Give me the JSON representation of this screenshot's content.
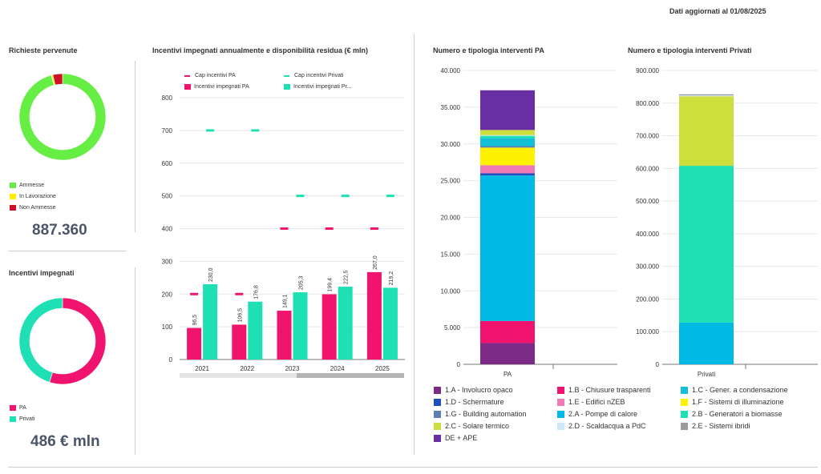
{
  "header": {
    "updated": "Dati aggiornati al 01/08/2025"
  },
  "requests": {
    "title": "Richieste pervenute",
    "total": "887.360",
    "legend": [
      {
        "label": "Ammesse",
        "color": "#66ee44"
      },
      {
        "label": "In Lavorazione",
        "color": "#ffee00"
      },
      {
        "label": "Non Ammesse",
        "color": "#cc1122"
      }
    ]
  },
  "incentives": {
    "title": "Incentivi impegnati",
    "total": "486 € mln",
    "legend": [
      {
        "label": "PA",
        "color": "#f0146e"
      },
      {
        "label": "Privati",
        "color": "#1ee0b4"
      }
    ]
  },
  "chart_data": [
    {
      "type": "pie",
      "variant": "donut",
      "categories": [
        "Ammesse",
        "In Lavorazione",
        "Non Ammesse"
      ],
      "values": [
        95.8,
        0.6,
        3.6
      ],
      "colors": [
        "#66ee44",
        "#ffee00",
        "#cc1122"
      ]
    },
    {
      "type": "pie",
      "variant": "donut",
      "categories": [
        "PA",
        "Privati"
      ],
      "values": [
        54.9,
        45.1
      ],
      "colors": [
        "#f0146e",
        "#1ee0b4"
      ]
    },
    {
      "type": "bar",
      "title": "Incentivi impegnati annualmente e disponibilità residua (€ mln)",
      "categories": [
        "2021",
        "2022",
        "2023",
        "2024",
        "2025"
      ],
      "ylim": [
        0,
        800
      ],
      "yticks": [
        0,
        100,
        200,
        300,
        400,
        500,
        600,
        700,
        800
      ],
      "legend_labels": [
        "Cap incentivi PA",
        "Cap incentivi Privati",
        "Incentivi impegnati PA",
        "Incentivi impegnati Pr..."
      ],
      "series": [
        {
          "name": "Incentivi impegnati PA",
          "values": [
            96.5,
            106.5,
            149.1,
            199.4,
            267.0
          ],
          "labels": [
            "96,5",
            "106,5",
            "149,1",
            "199,4",
            "267,0"
          ],
          "color": "#f0146e"
        },
        {
          "name": "Incentivi impegnati Privati",
          "values": [
            230.0,
            176.8,
            205.3,
            222.5,
            219.2
          ],
          "labels": [
            "230,0",
            "176,8",
            "205,3",
            "222,5",
            "219,2"
          ],
          "color": "#1ee0b4"
        }
      ],
      "markers": [
        {
          "name": "Cap incentivi PA",
          "values": [
            200,
            200,
            400,
            400,
            400
          ],
          "color": "#f0146e"
        },
        {
          "name": "Cap incentivi Privati",
          "values": [
            700,
            700,
            500,
            500,
            500
          ],
          "color": "#1ee0b4"
        }
      ],
      "grid": true
    },
    {
      "type": "bar",
      "stacked": true,
      "title": "Numero e tipologia interventi PA",
      "categories": [
        "PA"
      ],
      "ylim": [
        0,
        40000
      ],
      "yticks": [
        "0",
        "5.000",
        "10.000",
        "15.000",
        "20.000",
        "25.000",
        "30.000",
        "35.000",
        "40.000"
      ],
      "ytick_values": [
        0,
        5000,
        10000,
        15000,
        20000,
        25000,
        30000,
        35000,
        40000
      ],
      "series": [
        {
          "name": "1.A - Involucro opaco",
          "values": [
            2900
          ],
          "color": "#7b2a85"
        },
        {
          "name": "1.B - Chiusure trasparenti",
          "values": [
            3000
          ],
          "color": "#f0146e"
        },
        {
          "name": "2.A - Pompe di calore",
          "values": [
            19800
          ],
          "color": "#00b9e4"
        },
        {
          "name": "1.D - Schermature",
          "values": [
            300
          ],
          "color": "#1f4fbf"
        },
        {
          "name": "1.E - Edifici nZEB",
          "values": [
            1100
          ],
          "color": "#f07ab4"
        },
        {
          "name": "1.F - Sistemi di illuminazione",
          "values": [
            2400
          ],
          "color": "#fff200"
        },
        {
          "name": "1.G - Building automation",
          "values": [
            200
          ],
          "color": "#5b7fb0"
        },
        {
          "name": "1.C - Gener. a condensazione",
          "values": [
            1100
          ],
          "color": "#14c0d8"
        },
        {
          "name": "2.B - Generatori a biomasse",
          "values": [
            300
          ],
          "color": "#1ee0b4"
        },
        {
          "name": "2.D - Scaldacqua a PdC",
          "values": [
            100
          ],
          "color": "#cde7f4"
        },
        {
          "name": "2.C - Solare termico",
          "values": [
            700
          ],
          "color": "#cddf3c"
        },
        {
          "name": "DE + APE",
          "values": [
            5400
          ],
          "color": "#6a2ea4"
        }
      ]
    },
    {
      "type": "bar",
      "stacked": true,
      "title": "Numero e tipologia interventi Privati",
      "categories": [
        "Privati"
      ],
      "ylim": [
        0,
        900000
      ],
      "yticks": [
        "0",
        "100.000",
        "200.000",
        "300.000",
        "400.000",
        "500.000",
        "600.000",
        "700.000",
        "800.000",
        "900.000"
      ],
      "ytick_values": [
        0,
        100000,
        200000,
        300000,
        400000,
        500000,
        600000,
        700000,
        800000,
        900000
      ],
      "series": [
        {
          "name": "2.A - Pompe di calore",
          "values": [
            128000
          ],
          "color": "#00b9e4"
        },
        {
          "name": "2.B - Generatori a biomasse",
          "values": [
            480000
          ],
          "color": "#1ee0b4"
        },
        {
          "name": "2.C - Solare termico",
          "values": [
            213000
          ],
          "color": "#cddf3c"
        },
        {
          "name": "2.D - Scaldacqua a PdC",
          "values": [
            3000
          ],
          "color": "#cde7f4"
        },
        {
          "name": "2.E - Sistemi ibridi",
          "values": [
            3000
          ],
          "color": "#9a9a9a"
        }
      ]
    }
  ],
  "legend_types": [
    {
      "label": "1.A - Involucro opaco",
      "color": "#7b2a85"
    },
    {
      "label": "1.B - Chiusure trasparenti",
      "color": "#f0146e"
    },
    {
      "label": "1.C - Gener. a condensazione",
      "color": "#14c0d8"
    },
    {
      "label": "1.D - Schermature",
      "color": "#1f4fbf"
    },
    {
      "label": "1.E - Edifici nZEB",
      "color": "#f07ab4"
    },
    {
      "label": "1.F - Sistemi di illuminazione",
      "color": "#fff200"
    },
    {
      "label": "1.G - Building automation",
      "color": "#5b7fb0"
    },
    {
      "label": "2.A - Pompe di calore",
      "color": "#00b9e4"
    },
    {
      "label": "2.B - Generatori a biomasse",
      "color": "#1ee0b4"
    },
    {
      "label": "2.C - Solare termico",
      "color": "#cddf3c"
    },
    {
      "label": "2.D - Scaldacqua a PdC",
      "color": "#cde7f4"
    },
    {
      "label": "2.E - Sistemi ibridi",
      "color": "#9a9a9a"
    },
    {
      "label": "DE + APE",
      "color": "#6a2ea4"
    }
  ]
}
